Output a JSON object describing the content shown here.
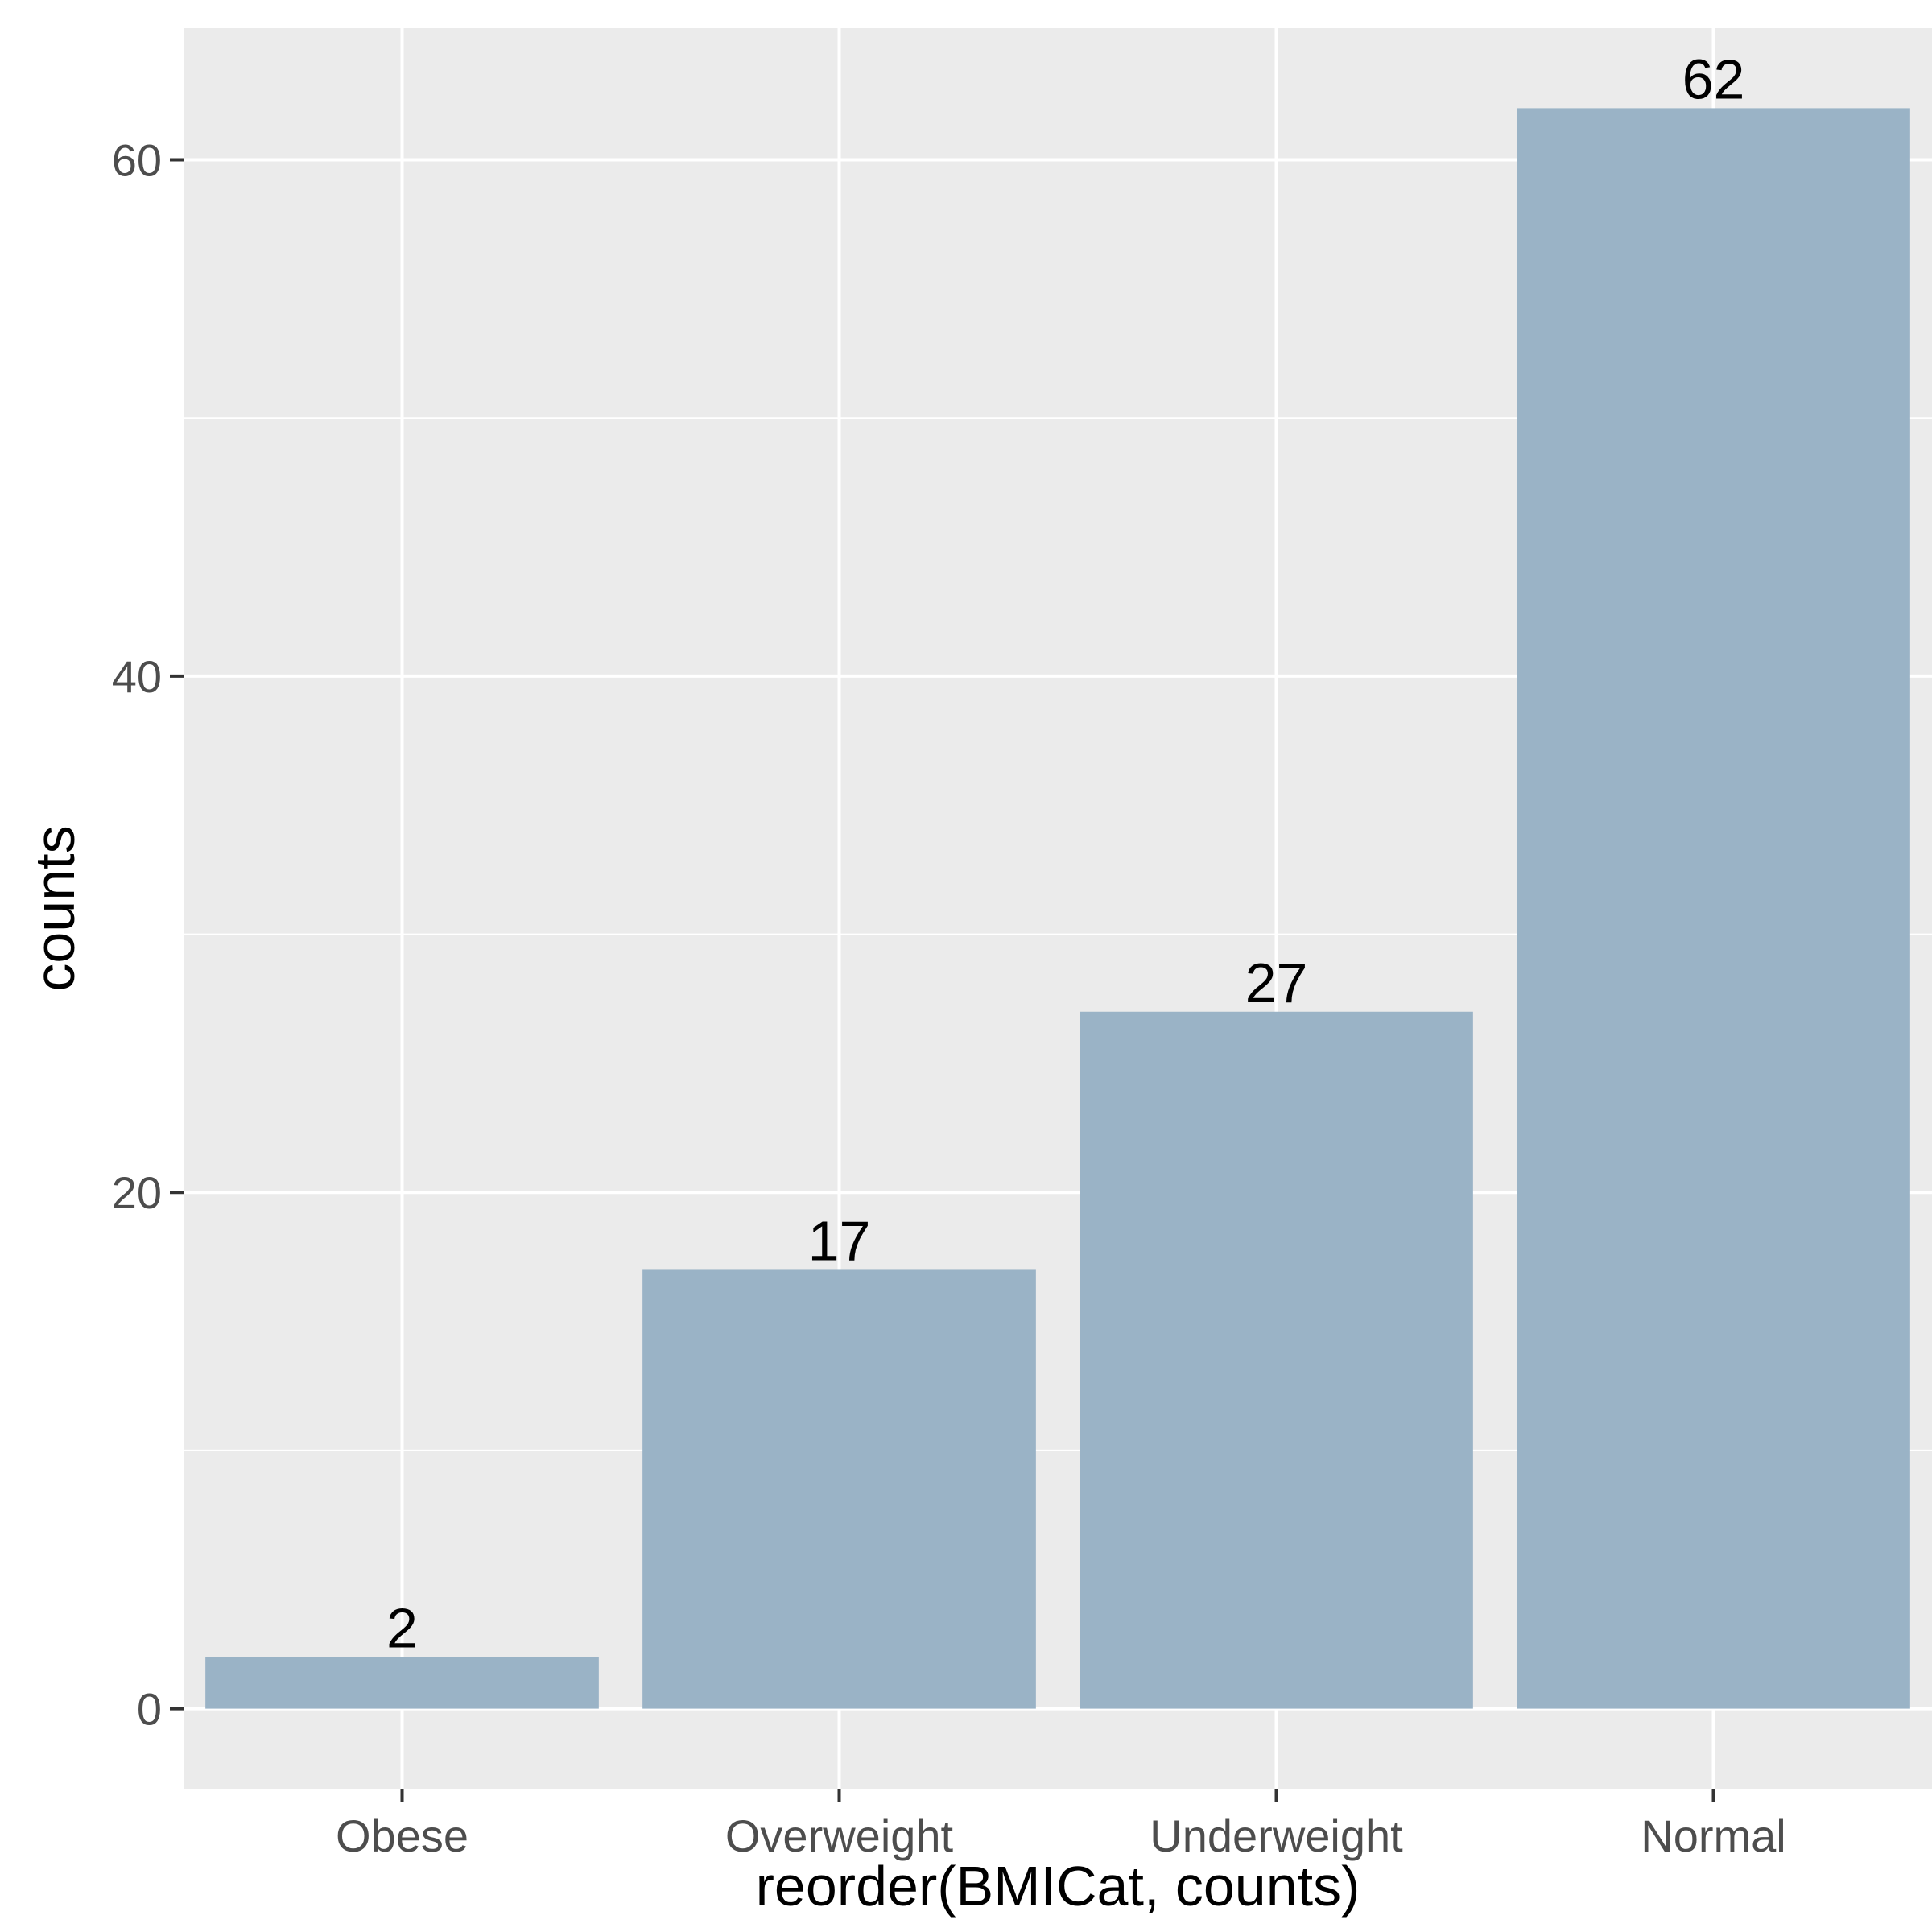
{
  "chart_data": {
    "type": "bar",
    "categories": [
      "Obese",
      "Overweight",
      "Underweight",
      "Normal"
    ],
    "values": [
      2,
      17,
      27,
      62
    ],
    "data_labels": [
      "2",
      "17",
      "27",
      "62"
    ],
    "xlabel": "reorder(BMICat, counts)",
    "ylabel": "counts",
    "ylim": [
      -3.1,
      65.1
    ],
    "yticks": [
      0,
      20,
      40,
      60
    ],
    "ytick_labels": [
      "0",
      "20",
      "40",
      "60"
    ],
    "yminor_ticks": [
      10,
      30,
      50
    ],
    "grid": true,
    "legend": "none"
  },
  "colors": {
    "panel_background": "#ebebeb",
    "grid": "#ffffff",
    "bar_fill": "#9ab3c6",
    "tick_mark": "#333333",
    "tick_text": "#4d4d4d",
    "title_text": "#000000"
  }
}
